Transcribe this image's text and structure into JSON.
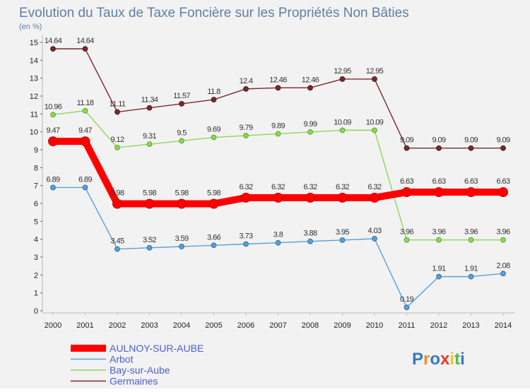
{
  "header": {
    "title": "Evolution du Taux de Taxe Foncière sur les Propriétés Non Bâties",
    "unit": "(en %)"
  },
  "logo": {
    "text": "Proxiti"
  },
  "chart_data": {
    "type": "line",
    "title": "Evolution du Taux de Taxe Foncière sur les Propriétés Non Bâties",
    "ylabel": "(en %)",
    "xlabel": "",
    "ylim": [
      0,
      15
    ],
    "yticks": [
      0,
      1,
      2,
      3,
      4,
      5,
      6,
      7,
      8,
      9,
      10,
      11,
      12,
      13,
      14,
      15
    ],
    "x": [
      "2000",
      "2001",
      "2002",
      "2003",
      "2004",
      "2005",
      "2006",
      "2007",
      "2008",
      "2009",
      "2010",
      "2011",
      "2012",
      "2013",
      "2014"
    ],
    "grid": false,
    "legend_position": "bottom-left",
    "series": [
      {
        "name": "Germaines",
        "color": "#7a2a2e",
        "values": [
          14.64,
          14.64,
          11.11,
          11.34,
          11.57,
          11.8,
          12.4,
          12.46,
          12.46,
          12.95,
          12.95,
          9.09,
          9.09,
          9.09,
          9.09
        ],
        "labels": [
          "14.64",
          "14.64",
          "11.11",
          "11.34",
          "11.57",
          "11.8",
          "12.4",
          "12.46",
          "12.46",
          "12.95",
          "12.95",
          "9.09",
          "9.09",
          "9.09",
          "9.09"
        ]
      },
      {
        "name": "Bay-sur-Aube",
        "color": "#8fd65a",
        "values": [
          10.96,
          11.18,
          9.12,
          9.31,
          9.5,
          9.69,
          9.79,
          9.89,
          9.99,
          10.09,
          10.09,
          3.96,
          3.96,
          3.96,
          3.96
        ],
        "labels": [
          "10.96",
          "11.18",
          "9.12",
          "9.31",
          "9.5",
          "9.69",
          "9.79",
          "9.89",
          "9.99",
          "10.09",
          "10.09",
          "3.96",
          "3.96",
          "3.96",
          "3.96"
        ]
      },
      {
        "name": "Arbot",
        "color": "#5ba0d8",
        "values": [
          6.89,
          6.89,
          3.45,
          3.52,
          3.59,
          3.66,
          3.73,
          3.8,
          3.88,
          3.95,
          4.03,
          0.19,
          1.91,
          1.91,
          2.08
        ],
        "labels": [
          "6.89",
          "6.89",
          "3.45",
          "3.52",
          "3.59",
          "3.66",
          "3.73",
          "3.8",
          "3.88",
          "3.95",
          "4.03",
          "0.19",
          "1.91",
          "1.91",
          "2.08"
        ]
      },
      {
        "name": "AULNOY-SUR-AUBE",
        "color": "#ff0000",
        "values": [
          9.47,
          9.47,
          5.98,
          5.98,
          5.98,
          5.98,
          6.32,
          6.32,
          6.32,
          6.32,
          6.32,
          6.63,
          6.63,
          6.63,
          6.63
        ],
        "labels": [
          "9.47",
          "9.47",
          "5.98",
          "5.98",
          "5.98",
          "5.98",
          "6.32",
          "6.32",
          "6.32",
          "6.32",
          "6.32",
          "6.63",
          "6.63",
          "6.63",
          "6.63"
        ]
      }
    ],
    "legend": [
      "AULNOY-SUR-AUBE",
      "Arbot",
      "Bay-sur-Aube",
      "Germaines"
    ]
  }
}
